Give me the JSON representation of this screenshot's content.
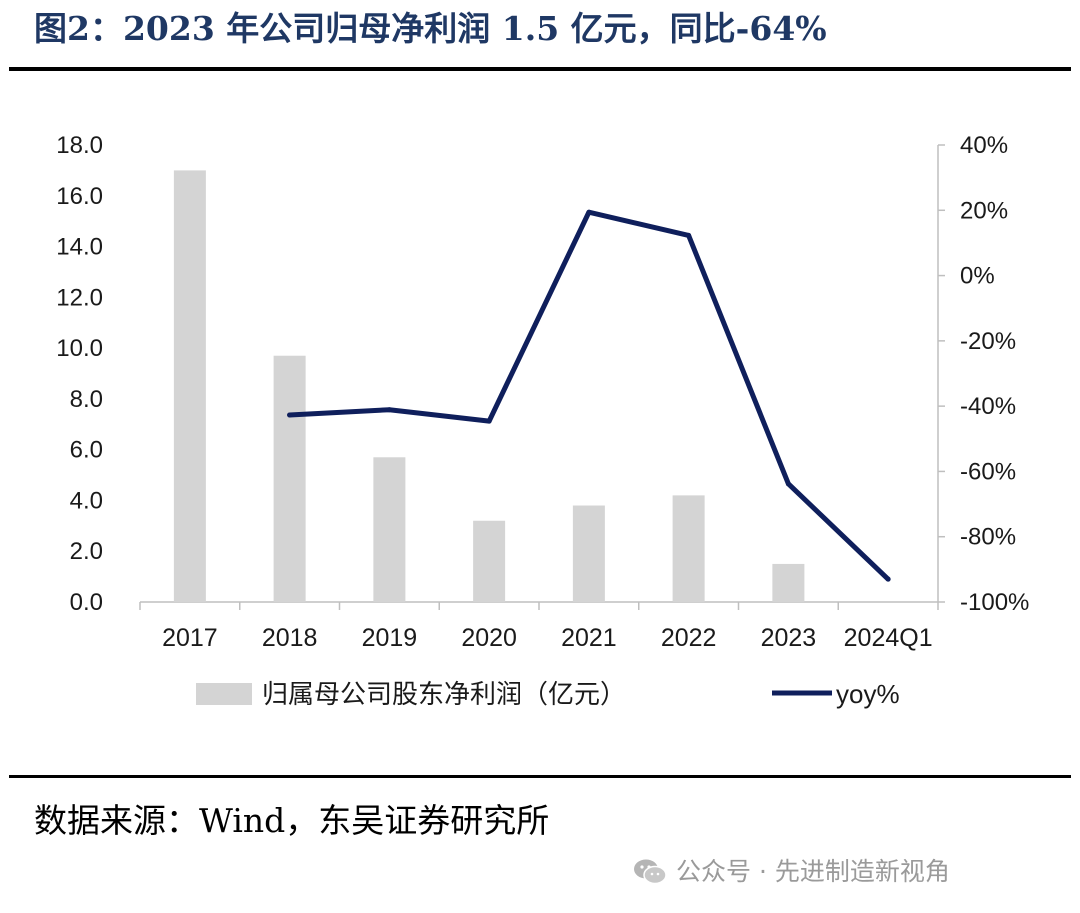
{
  "figure_title": "图2：2023 年公司归母净利润 1.5 亿元，同比-64%",
  "source_note": "数据来源：Wind，东吴证券研究所",
  "watermark": "公众号 · 先进制造新视角",
  "colors": {
    "bars": "#d4d4d4",
    "line": "#0f1f5c",
    "axis": "#bfbfbf",
    "title": "#1f3864"
  },
  "chart_data": {
    "type": "bar",
    "categories": [
      "2017",
      "2018",
      "2019",
      "2020",
      "2021",
      "2022",
      "2023",
      "2024Q1"
    ],
    "series": [
      {
        "name": "归属母公司股东净利润（亿元）",
        "type": "bar",
        "axis": "left",
        "values": [
          17.0,
          9.7,
          5.7,
          3.2,
          3.8,
          4.2,
          1.5,
          null
        ]
      },
      {
        "name": "yoy%",
        "type": "line",
        "axis": "right",
        "values": [
          null,
          -42.7,
          -41.1,
          -44.6,
          19.4,
          12.3,
          -63.8,
          -93.0
        ]
      }
    ],
    "y_left": {
      "min": 0,
      "max": 18,
      "ticks": [
        "0.0",
        "2.0",
        "4.0",
        "6.0",
        "8.0",
        "10.0",
        "12.0",
        "14.0",
        "16.0",
        "18.0"
      ]
    },
    "y_right": {
      "min": -100,
      "max": 40,
      "ticks": [
        "-100%",
        "-80%",
        "-60%",
        "-40%",
        "-20%",
        "0%",
        "20%",
        "40%"
      ]
    },
    "legend_position": "bottom",
    "grid": false
  }
}
